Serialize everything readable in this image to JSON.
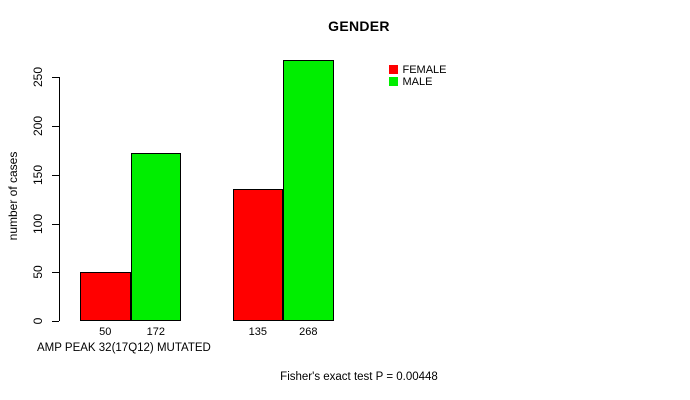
{
  "chart_data": {
    "type": "bar",
    "title": "GENDER",
    "ylabel": "number of cases",
    "xlabel": "AMP PEAK 32(17Q12) MUTATED",
    "footnote": "Fisher's exact test P = 0.00448",
    "series": [
      {
        "name": "FEMALE",
        "color": "#FF0000",
        "values": [
          50,
          135
        ]
      },
      {
        "name": "MALE",
        "color": "#00EE00",
        "values": [
          172,
          268
        ]
      }
    ],
    "groups": 2,
    "show_values_under_bars": true,
    "yticks": [
      0,
      50,
      100,
      150,
      200,
      250
    ],
    "ylim": [
      0,
      275
    ],
    "grid": false,
    "legend_position": "top-right",
    "bar_border_color": "#000000",
    "background_color": "#FFFFFF"
  }
}
